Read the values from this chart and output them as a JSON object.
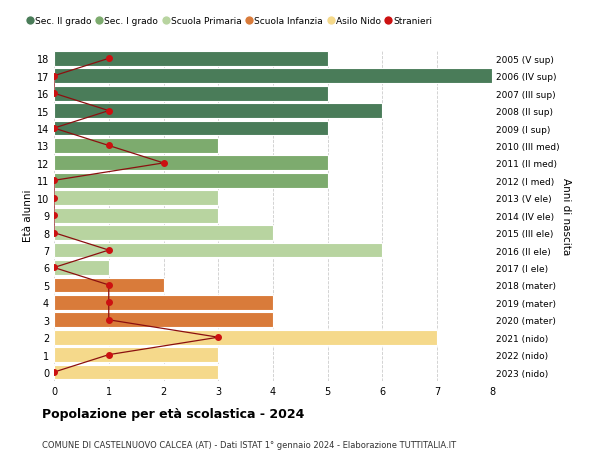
{
  "ages": [
    18,
    17,
    16,
    15,
    14,
    13,
    12,
    11,
    10,
    9,
    8,
    7,
    6,
    5,
    4,
    3,
    2,
    1,
    0
  ],
  "right_labels": [
    "2005 (V sup)",
    "2006 (IV sup)",
    "2007 (III sup)",
    "2008 (II sup)",
    "2009 (I sup)",
    "2010 (III med)",
    "2011 (II med)",
    "2012 (I med)",
    "2013 (V ele)",
    "2014 (IV ele)",
    "2015 (III ele)",
    "2016 (II ele)",
    "2017 (I ele)",
    "2018 (mater)",
    "2019 (mater)",
    "2020 (mater)",
    "2021 (nido)",
    "2022 (nido)",
    "2023 (nido)"
  ],
  "bar_values": [
    5,
    8,
    5,
    6,
    5,
    3,
    5,
    5,
    3,
    3,
    4,
    6,
    1,
    2,
    4,
    4,
    7,
    3,
    3
  ],
  "bar_colors": [
    "#4a7c59",
    "#4a7c59",
    "#4a7c59",
    "#4a7c59",
    "#4a7c59",
    "#7dab6e",
    "#7dab6e",
    "#7dab6e",
    "#b8d4a0",
    "#b8d4a0",
    "#b8d4a0",
    "#b8d4a0",
    "#b8d4a0",
    "#d97b3a",
    "#d97b3a",
    "#d97b3a",
    "#f5d98b",
    "#f5d98b",
    "#f5d98b"
  ],
  "stranieri_values": [
    1,
    0,
    0,
    1,
    0,
    1,
    2,
    0,
    0,
    0,
    0,
    1,
    0,
    1,
    1,
    1,
    3,
    1,
    0
  ],
  "legend_labels": [
    "Sec. II grado",
    "Sec. I grado",
    "Scuola Primaria",
    "Scuola Infanzia",
    "Asilo Nido",
    "Stranieri"
  ],
  "legend_colors": [
    "#4a7c59",
    "#7dab6e",
    "#b8d4a0",
    "#d97b3a",
    "#f5d98b",
    "#cc1111"
  ],
  "title": "Popolazione per età scolastica - 2024",
  "subtitle": "COMUNE DI CASTELNUOVO CALCEA (AT) - Dati ISTAT 1° gennaio 2024 - Elaborazione TUTTITALIA.IT",
  "ylabel": "Età alunni",
  "right_ylabel": "Anni di nascita",
  "xlim": [
    0,
    8
  ],
  "ylim": [
    -0.5,
    18.5
  ],
  "bg_color": "#ffffff",
  "grid_color": "#cccccc",
  "bar_edge_color": "#ffffff",
  "stranieri_line_color": "#8b1010",
  "stranieri_dot_color": "#cc1111"
}
